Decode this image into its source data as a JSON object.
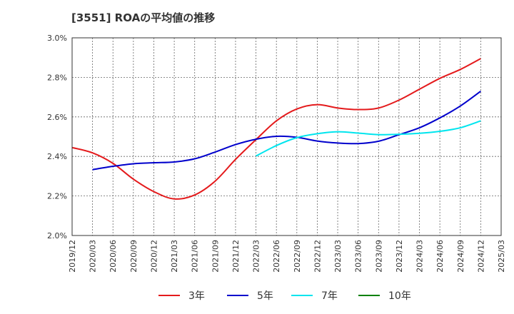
{
  "chart_data": {
    "type": "line",
    "title": "[3551]  ROAの平均値の推移",
    "x": [
      "2019/12",
      "2020/03",
      "2020/06",
      "2020/09",
      "2020/12",
      "2021/03",
      "2021/06",
      "2021/09",
      "2021/12",
      "2022/03",
      "2022/06",
      "2022/09",
      "2022/12",
      "2023/03",
      "2023/06",
      "2023/09",
      "2023/12",
      "2024/03",
      "2024/06",
      "2024/09",
      "2024/12",
      "2025/03"
    ],
    "ylim": [
      2.0,
      3.0
    ],
    "y_ticks": [
      "2.0%",
      "2.2%",
      "2.4%",
      "2.6%",
      "2.8%",
      "3.0%"
    ],
    "y_tick_values": [
      2.0,
      2.2,
      2.4,
      2.6,
      2.8,
      3.0
    ],
    "grid": true,
    "legend_position": "bottom",
    "series": [
      {
        "name": "3年",
        "color": "#e41a1c",
        "values": [
          2.445,
          2.418,
          2.365,
          2.285,
          2.222,
          2.185,
          2.205,
          2.275,
          2.385,
          2.485,
          2.58,
          2.64,
          2.662,
          2.645,
          2.637,
          2.645,
          2.685,
          2.74,
          2.795,
          2.84,
          2.895,
          null
        ]
      },
      {
        "name": "5年",
        "color": "#0000cc",
        "values": [
          null,
          2.333,
          2.35,
          2.363,
          2.368,
          2.372,
          2.388,
          2.422,
          2.46,
          2.487,
          2.502,
          2.497,
          2.478,
          2.468,
          2.465,
          2.477,
          2.51,
          2.545,
          2.595,
          2.655,
          2.73,
          null
        ]
      },
      {
        "name": "7年",
        "color": "#00e5ee",
        "values": [
          null,
          null,
          null,
          null,
          null,
          null,
          null,
          null,
          null,
          2.402,
          2.455,
          2.495,
          2.515,
          2.525,
          2.518,
          2.51,
          2.512,
          2.517,
          2.527,
          2.545,
          2.58,
          null
        ]
      },
      {
        "name": "10年",
        "color": "#008000",
        "values": [
          null,
          null,
          null,
          null,
          null,
          null,
          null,
          null,
          null,
          null,
          null,
          null,
          null,
          null,
          null,
          null,
          null,
          null,
          null,
          null,
          null,
          null
        ]
      }
    ]
  }
}
